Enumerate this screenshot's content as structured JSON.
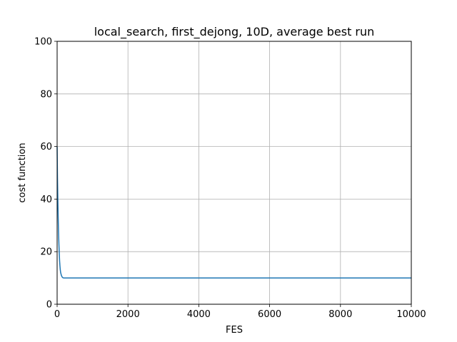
{
  "chart_data": {
    "type": "line",
    "title": "local_search, first_dejong, 10D, average best run",
    "xlabel": "FES",
    "ylabel": "cost function",
    "xlim": [
      0,
      10000
    ],
    "ylim": [
      0,
      100
    ],
    "xticks": [
      0,
      2000,
      4000,
      6000,
      8000,
      10000
    ],
    "yticks": [
      0,
      20,
      40,
      60,
      80,
      100
    ],
    "grid": true,
    "series": [
      {
        "color": "#1f77b4",
        "x": [
          0,
          10,
          20,
          30,
          40,
          50,
          60,
          70,
          80,
          90,
          100,
          120,
          140,
          160,
          180,
          200,
          300,
          500,
          1000,
          2000,
          4000,
          6000,
          8000,
          10000
        ],
        "y": [
          60,
          48,
          40,
          33,
          27.5,
          23,
          19.5,
          16.5,
          14.5,
          13,
          12,
          11,
          10.4,
          10.1,
          10,
          10,
          10,
          10,
          10,
          10,
          10,
          10,
          10,
          10
        ]
      }
    ]
  }
}
